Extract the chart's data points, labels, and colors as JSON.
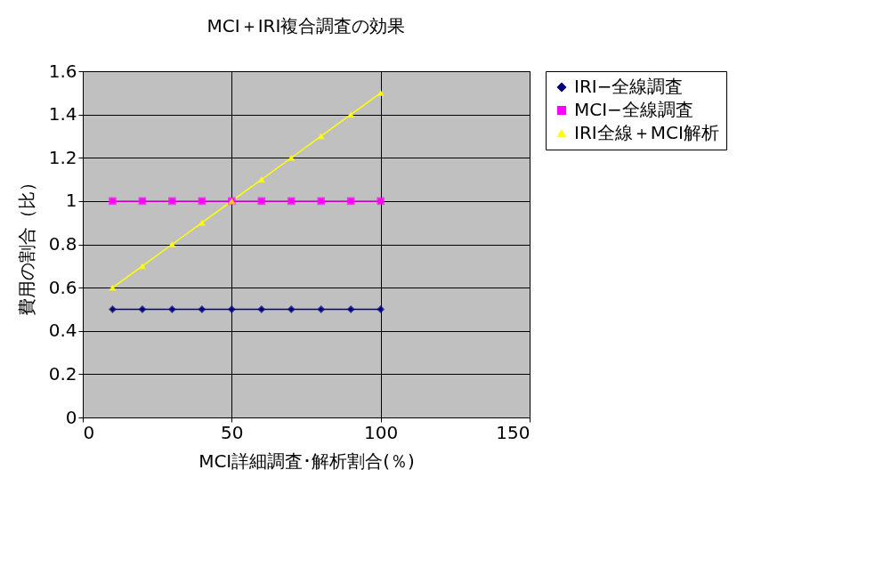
{
  "chart_data": {
    "type": "line",
    "title": "MCI＋IRI複合調査の効果",
    "xlabel": "MCI詳細調査･解析割合(％)",
    "ylabel": "費用の割合（比）",
    "x": [
      10,
      20,
      30,
      40,
      50,
      60,
      70,
      80,
      90,
      100
    ],
    "series": [
      {
        "name": "IRI−全線調査",
        "color": "#000080",
        "marker": "diamond",
        "values": [
          0.5,
          0.5,
          0.5,
          0.5,
          0.5,
          0.5,
          0.5,
          0.5,
          0.5,
          0.5
        ]
      },
      {
        "name": "MCI−全線調査",
        "color": "#ff00ff",
        "marker": "square",
        "values": [
          1,
          1,
          1,
          1,
          1,
          1,
          1,
          1,
          1,
          1
        ]
      },
      {
        "name": "IRI全線＋MCI解析",
        "color": "#ffff00",
        "marker": "triangle",
        "values": [
          0.6,
          0.7,
          0.8,
          0.9,
          1.0,
          1.1,
          1.2,
          1.3,
          1.4,
          1.5
        ]
      }
    ],
    "xlim": [
      0,
      150
    ],
    "xticks": [
      0,
      50,
      100,
      150
    ],
    "ylim": [
      0,
      1.6
    ],
    "yticks": [
      0,
      0.2,
      0.4,
      0.6,
      0.8,
      1,
      1.2,
      1.4,
      1.6
    ],
    "grid": true,
    "legend": "right",
    "line_style": "solid"
  }
}
